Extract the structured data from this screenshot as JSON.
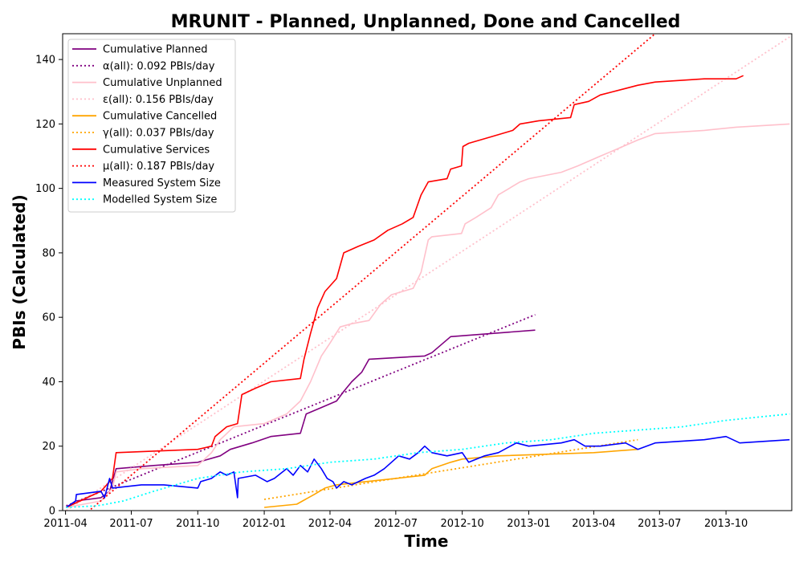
{
  "chart_data": {
    "type": "line",
    "title": "MRUNIT - Planned, Unplanned, Done  and Cancelled",
    "xlabel": "Time",
    "ylabel": "PBIs (Calculated)",
    "xlim": [
      "2011-03-28",
      "2013-12-31"
    ],
    "ylim": [
      0,
      148
    ],
    "x_ticks": [
      "2011-04",
      "2011-07",
      "2011-10",
      "2012-01",
      "2012-04",
      "2012-07",
      "2012-10",
      "2013-01",
      "2013-04",
      "2013-07",
      "2013-10"
    ],
    "y_ticks": [
      0,
      20,
      40,
      60,
      80,
      100,
      120,
      140
    ],
    "grid": false,
    "legend": "top-left",
    "series": [
      {
        "name": "Cumulative Planned",
        "color": "#800080",
        "style": "solid",
        "points": [
          [
            "2011-04-02",
            1
          ],
          [
            "2011-04-15",
            3
          ],
          [
            "2011-05-20",
            4
          ],
          [
            "2011-06-01",
            6
          ],
          [
            "2011-06-10",
            13
          ],
          [
            "2011-08-01",
            14
          ],
          [
            "2011-10-01",
            15
          ],
          [
            "2011-11-01",
            17
          ],
          [
            "2011-11-15",
            19
          ],
          [
            "2011-12-15",
            21
          ],
          [
            "2012-01-10",
            23
          ],
          [
            "2012-02-20",
            24
          ],
          [
            "2012-02-28",
            30
          ],
          [
            "2012-03-20",
            32
          ],
          [
            "2012-04-10",
            34
          ],
          [
            "2012-04-20",
            37
          ],
          [
            "2012-05-01",
            40
          ],
          [
            "2012-05-15",
            43
          ],
          [
            "2012-05-25",
            47
          ],
          [
            "2012-08-10",
            48
          ],
          [
            "2012-08-20",
            49
          ],
          [
            "2012-09-15",
            54
          ],
          [
            "2013-01-10",
            56
          ]
        ]
      },
      {
        "name": "α(all): 0.092 PBIs/day",
        "color": "#800080",
        "style": "dotted",
        "points": [
          [
            "2011-04-02",
            1.5
          ],
          [
            "2013-01-10",
            60.8
          ]
        ]
      },
      {
        "name": "Cumulative Unplanned",
        "color": "#ffc0cb",
        "style": "solid",
        "points": [
          [
            "2011-04-02",
            1
          ],
          [
            "2011-05-20",
            3
          ],
          [
            "2011-06-05",
            7
          ],
          [
            "2011-06-10",
            12
          ],
          [
            "2011-07-15",
            13
          ],
          [
            "2011-10-01",
            14
          ],
          [
            "2011-10-20",
            18
          ],
          [
            "2011-11-01",
            22
          ],
          [
            "2011-11-20",
            26
          ],
          [
            "2012-01-01",
            27
          ],
          [
            "2012-02-01",
            30
          ],
          [
            "2012-02-20",
            34
          ],
          [
            "2012-03-05",
            40
          ],
          [
            "2012-03-20",
            48
          ],
          [
            "2012-04-01",
            52
          ],
          [
            "2012-04-15",
            57
          ],
          [
            "2012-05-01",
            58
          ],
          [
            "2012-05-25",
            59
          ],
          [
            "2012-06-10",
            64
          ],
          [
            "2012-06-25",
            67
          ],
          [
            "2012-07-10",
            68
          ],
          [
            "2012-07-25",
            69
          ],
          [
            "2012-08-05",
            74
          ],
          [
            "2012-08-15",
            84
          ],
          [
            "2012-08-20",
            85
          ],
          [
            "2012-09-30",
            86
          ],
          [
            "2012-10-05",
            89
          ],
          [
            "2012-10-20",
            91
          ],
          [
            "2012-11-10",
            94
          ],
          [
            "2012-11-20",
            98
          ],
          [
            "2012-12-20",
            102
          ],
          [
            "2013-01-01",
            103
          ],
          [
            "2013-02-15",
            105
          ],
          [
            "2013-03-10",
            107
          ],
          [
            "2013-04-10",
            110
          ],
          [
            "2013-05-01",
            112
          ],
          [
            "2013-06-01",
            115
          ],
          [
            "2013-06-25",
            117
          ],
          [
            "2013-09-01",
            118
          ],
          [
            "2013-10-15",
            119
          ],
          [
            "2013-12-28",
            120
          ]
        ]
      },
      {
        "name": "ε(all): 0.156 PBIs/day",
        "color": "#ffc0cb",
        "style": "dotted",
        "points": [
          [
            "2011-04-02",
            0
          ],
          [
            "2013-12-28",
            147
          ]
        ]
      },
      {
        "name": "Cumulative Cancelled",
        "color": "#ffa500",
        "style": "solid",
        "points": [
          [
            "2012-01-01",
            1
          ],
          [
            "2012-02-15",
            2
          ],
          [
            "2012-03-10",
            5
          ],
          [
            "2012-03-25",
            7
          ],
          [
            "2012-04-10",
            8
          ],
          [
            "2012-05-20",
            9
          ],
          [
            "2012-07-01",
            10
          ],
          [
            "2012-08-10",
            11
          ],
          [
            "2012-08-20",
            13
          ],
          [
            "2012-09-15",
            15
          ],
          [
            "2012-10-01",
            16
          ],
          [
            "2012-11-20",
            17
          ],
          [
            "2013-04-01",
            18
          ],
          [
            "2013-06-01",
            19
          ]
        ]
      },
      {
        "name": "γ(all): 0.037 PBIs/day",
        "color": "#ffa500",
        "style": "dotted",
        "points": [
          [
            "2012-01-01",
            3.5
          ],
          [
            "2013-06-01",
            22
          ]
        ]
      },
      {
        "name": "Cumulative Services",
        "color": "#ff0000",
        "style": "solid",
        "points": [
          [
            "2011-04-02",
            1
          ],
          [
            "2011-05-20",
            6
          ],
          [
            "2011-06-05",
            10
          ],
          [
            "2011-06-10",
            18
          ],
          [
            "2011-10-01",
            19
          ],
          [
            "2011-10-20",
            20
          ],
          [
            "2011-10-25",
            23
          ],
          [
            "2011-11-10",
            26
          ],
          [
            "2011-11-25",
            27
          ],
          [
            "2011-12-01",
            36
          ],
          [
            "2011-12-20",
            38
          ],
          [
            "2012-01-10",
            40
          ],
          [
            "2012-02-20",
            41
          ],
          [
            "2012-02-25",
            47
          ],
          [
            "2012-03-05",
            55
          ],
          [
            "2012-03-15",
            63
          ],
          [
            "2012-03-25",
            68
          ],
          [
            "2012-04-10",
            72
          ],
          [
            "2012-04-20",
            80
          ],
          [
            "2012-05-10",
            82
          ],
          [
            "2012-06-01",
            84
          ],
          [
            "2012-06-20",
            87
          ],
          [
            "2012-07-10",
            89
          ],
          [
            "2012-07-25",
            91
          ],
          [
            "2012-08-05",
            98
          ],
          [
            "2012-08-15",
            102
          ],
          [
            "2012-09-10",
            103
          ],
          [
            "2012-09-15",
            106
          ],
          [
            "2012-09-30",
            107
          ],
          [
            "2012-10-02",
            113
          ],
          [
            "2012-10-10",
            114
          ],
          [
            "2012-11-10",
            116
          ],
          [
            "2012-12-10",
            118
          ],
          [
            "2012-12-20",
            120
          ],
          [
            "2013-01-15",
            121
          ],
          [
            "2013-02-28",
            122
          ],
          [
            "2013-03-05",
            126
          ],
          [
            "2013-03-25",
            127
          ],
          [
            "2013-04-10",
            129
          ],
          [
            "2013-05-15",
            131
          ],
          [
            "2013-06-01",
            132
          ],
          [
            "2013-06-25",
            133
          ],
          [
            "2013-09-01",
            134
          ],
          [
            "2013-10-15",
            134
          ],
          [
            "2013-10-25",
            135
          ]
        ]
      },
      {
        "name": "μ(all): 0.187 PBIs/day",
        "color": "#ff0000",
        "style": "dotted",
        "points": [
          [
            "2011-04-02",
            -6
          ],
          [
            "2013-06-25",
            148
          ]
        ]
      },
      {
        "name": "Measured System Size",
        "color": "#0000ff",
        "style": "solid",
        "points": [
          [
            "2011-04-02",
            1
          ],
          [
            "2011-04-15",
            3
          ],
          [
            "2011-04-16",
            5
          ],
          [
            "2011-05-20",
            6
          ],
          [
            "2011-05-25",
            4
          ],
          [
            "2011-06-01",
            10
          ],
          [
            "2011-06-05",
            7
          ],
          [
            "2011-07-15",
            8
          ],
          [
            "2011-08-15",
            8
          ],
          [
            "2011-10-01",
            7
          ],
          [
            "2011-10-05",
            9
          ],
          [
            "2011-10-20",
            10
          ],
          [
            "2011-11-01",
            12
          ],
          [
            "2011-11-10",
            11
          ],
          [
            "2011-11-20",
            12
          ],
          [
            "2011-11-25",
            4
          ],
          [
            "2011-11-26",
            10
          ],
          [
            "2011-12-20",
            11
          ],
          [
            "2012-01-05",
            9
          ],
          [
            "2012-01-15",
            10
          ],
          [
            "2012-02-01",
            13
          ],
          [
            "2012-02-10",
            11
          ],
          [
            "2012-02-20",
            14
          ],
          [
            "2012-03-01",
            12
          ],
          [
            "2012-03-10",
            16
          ],
          [
            "2012-03-20",
            13
          ],
          [
            "2012-03-28",
            10
          ],
          [
            "2012-04-05",
            9
          ],
          [
            "2012-04-10",
            7
          ],
          [
            "2012-04-20",
            9
          ],
          [
            "2012-05-01",
            8
          ],
          [
            "2012-05-20",
            10
          ],
          [
            "2012-06-01",
            11
          ],
          [
            "2012-06-15",
            13
          ],
          [
            "2012-06-25",
            15
          ],
          [
            "2012-07-05",
            17
          ],
          [
            "2012-07-20",
            16
          ],
          [
            "2012-08-01",
            18
          ],
          [
            "2012-08-10",
            20
          ],
          [
            "2012-08-20",
            18
          ],
          [
            "2012-09-10",
            17
          ],
          [
            "2012-10-01",
            18
          ],
          [
            "2012-10-10",
            15
          ],
          [
            "2012-11-01",
            17
          ],
          [
            "2012-11-20",
            18
          ],
          [
            "2012-12-15",
            21
          ],
          [
            "2013-01-01",
            20
          ],
          [
            "2013-02-15",
            21
          ],
          [
            "2013-03-05",
            22
          ],
          [
            "2013-03-20",
            20
          ],
          [
            "2013-04-10",
            20
          ],
          [
            "2013-05-15",
            21
          ],
          [
            "2013-06-01",
            19
          ],
          [
            "2013-06-25",
            21
          ],
          [
            "2013-09-01",
            22
          ],
          [
            "2013-10-01",
            23
          ],
          [
            "2013-10-20",
            21
          ],
          [
            "2013-12-28",
            22
          ]
        ]
      },
      {
        "name": "Modelled System Size",
        "color": "#00ffff",
        "style": "dotted",
        "points": [
          [
            "2011-04-02",
            1
          ],
          [
            "2011-05-15",
            1.5
          ],
          [
            "2011-06-20",
            3
          ],
          [
            "2011-08-01",
            6
          ],
          [
            "2011-10-01",
            10
          ],
          [
            "2011-12-01",
            12
          ],
          [
            "2012-02-01",
            13
          ],
          [
            "2012-04-01",
            15
          ],
          [
            "2012-06-01",
            16
          ],
          [
            "2012-08-01",
            18
          ],
          [
            "2012-10-01",
            19
          ],
          [
            "2012-12-01",
            21
          ],
          [
            "2013-02-01",
            22
          ],
          [
            "2013-04-01",
            24
          ],
          [
            "2013-06-01",
            25
          ],
          [
            "2013-08-01",
            26
          ],
          [
            "2013-10-01",
            28
          ],
          [
            "2013-12-28",
            30
          ]
        ]
      }
    ]
  }
}
